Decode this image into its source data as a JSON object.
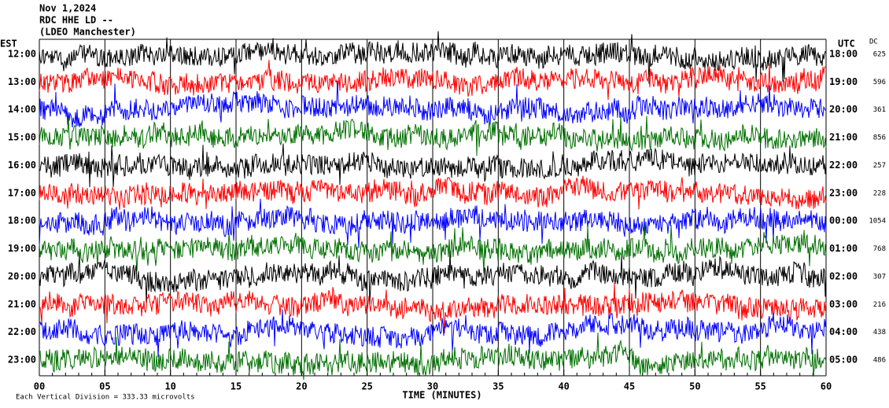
{
  "chart_data": {
    "type": "helicorder",
    "title_lines": [
      "Nov 1,2024",
      "RDC HHE LD --",
      "(LDEO Manchester)"
    ],
    "left_axis_title": "EST",
    "right_axis_title": "UTC",
    "dc_title": "DC",
    "rows": [
      {
        "est": "12:00",
        "utc": "18:00",
        "dc": 625
      },
      {
        "est": "13:00",
        "utc": "19:00",
        "dc": 596
      },
      {
        "est": "14:00",
        "utc": "20:00",
        "dc": 361
      },
      {
        "est": "15:00",
        "utc": "21:00",
        "dc": 856
      },
      {
        "est": "16:00",
        "utc": "22:00",
        "dc": 257
      },
      {
        "est": "17:00",
        "utc": "23:00",
        "dc": 228
      },
      {
        "est": "18:00",
        "utc": "00:00",
        "dc": 1054
      },
      {
        "est": "19:00",
        "utc": "01:00",
        "dc": 768
      },
      {
        "est": "20:00",
        "utc": "02:00",
        "dc": 307
      },
      {
        "est": "21:00",
        "utc": "03:00",
        "dc": 216
      },
      {
        "est": "22:00",
        "utc": "04:00",
        "dc": 438
      },
      {
        "est": "23:00",
        "utc": "05:00",
        "dc": 486
      }
    ],
    "trace_colors": [
      "#000000",
      "#ff0000",
      "#0000ff",
      "#007000"
    ],
    "xlim": [
      0,
      60
    ],
    "xticks": [
      {
        "value": 0,
        "label": "00"
      },
      {
        "value": 5,
        "label": "05"
      },
      10,
      15,
      20,
      25,
      30,
      35,
      40,
      45,
      50,
      55,
      60
    ],
    "xlabel": "TIME (MINUTES)",
    "footnote": "Each Vertical Division = 333.33 microvolts"
  }
}
